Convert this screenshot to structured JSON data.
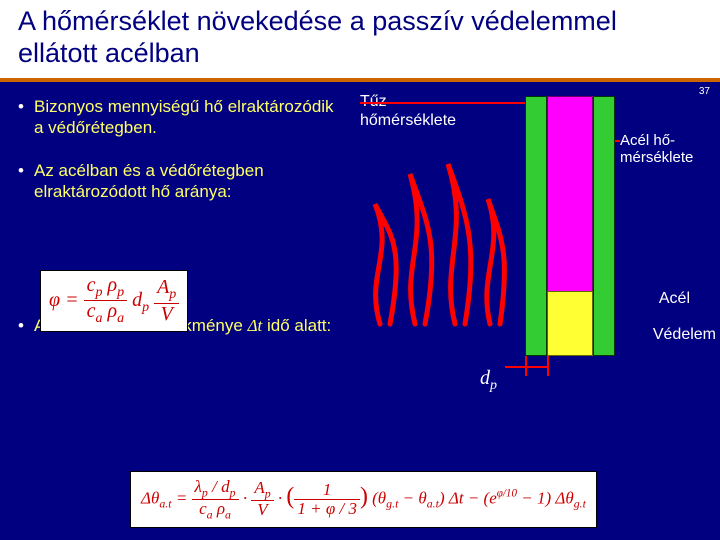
{
  "title": "A hőmérséklet növekedése a passzív védelemmel ellátott acélban",
  "page_number": "37",
  "bullets": {
    "b1": "Bizonyos mennyiségű hő elraktározódik a védőrétegben.",
    "b2": "Az acélban és a védőrétegben elraktározódott hő aránya:",
    "b3_prefix": "A hőmérséklet növekménye ",
    "b3_var": "Δt",
    "b3_suffix": " idő alatt:"
  },
  "diagram": {
    "fire_temp_label": "Tűz\nhőmérséklete",
    "steel_temp_label": "Acél hő-\nmérséklete",
    "steel_label": "Acél",
    "protection_label": "Védelem",
    "dp_label_html": "d<sub>p</sub>",
    "colors": {
      "protection": "#33cc33",
      "steel": "#ff00ff",
      "steel_section": "#ffff33",
      "flame": "#ff0000",
      "arrow": "#ff0000"
    }
  },
  "formula1": {
    "phi": "φ",
    "eq": " = ",
    "num1": "c<sub>p</sub> ρ<sub>p</sub>",
    "den1": "c<sub>a</sub> ρ<sub>a</sub>",
    "dp": " d<sub>p</sub> ",
    "num2": "A<sub>p</sub>",
    "den2": "V"
  },
  "formula2_text": "Δθ<sub>a.t</sub> = (λ<sub>p</sub>/d<sub>p</sub>)/(c<sub>a</sub> ρ<sub>a</sub>) · (A<sub>p</sub>/V) · (1/(1+φ/3)) · (θ<sub>g.t</sub> − θ<sub>a.t</sub>) Δt − (e<sup>φ/10</sup> − 1) Δθ<sub>g.t</sub>",
  "style": {
    "bg": "#000080",
    "title_bg": "#ffffff",
    "title_color": "#000080",
    "rule_color": "#cc6600",
    "bullet_color": "#ffff66",
    "formula_bg": "#ffffff",
    "formula_color": "#cc0000"
  }
}
